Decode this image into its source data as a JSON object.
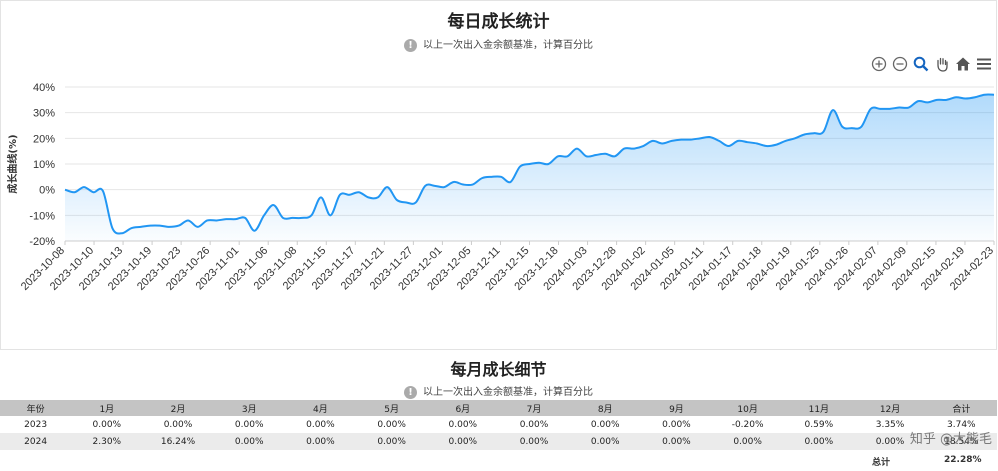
{
  "chart_title": "每日成长统计",
  "chart_subtitle": "以上一次出入金余额基准，计算百分比",
  "info_glyph": "!",
  "toolbar": [
    "zoom-in-icon",
    "zoom-out-icon",
    "zoom-select-icon",
    "pan-icon",
    "home-icon",
    "menu-icon"
  ],
  "chart_data": {
    "type": "area",
    "title": "每日成长统计",
    "subtitle": "以上一次出入金余额基准，计算百分比",
    "ylabel": "成长曲线(%)",
    "ylim": [
      -20,
      40
    ],
    "yticks": [
      -20,
      -10,
      0,
      10,
      20,
      30,
      40
    ],
    "ytick_labels": [
      "-20%",
      "-10%",
      "0%",
      "10%",
      "20%",
      "30%",
      "40%"
    ],
    "xtick_labels": [
      "2023-10-08",
      "2023-10-10",
      "2023-10-13",
      "2023-10-19",
      "2023-10-23",
      "2023-10-26",
      "2023-11-01",
      "2023-11-06",
      "2023-11-08",
      "2023-11-15",
      "2023-11-17",
      "2023-11-21",
      "2023-11-27",
      "2023-12-01",
      "2023-12-05",
      "2023-12-11",
      "2023-12-15",
      "2023-12-18",
      "2024-01-03",
      "2023-12-28",
      "2024-01-02",
      "2024-01-05",
      "2024-01-11",
      "2024-01-17",
      "2024-01-18",
      "2024-01-19",
      "2024-01-25",
      "2024-01-26",
      "2024-02-07",
      "2024-02-09",
      "2024-02-15",
      "2024-02-19",
      "2024-02-23"
    ],
    "grid": true,
    "color": "#2196f3",
    "series": [
      {
        "values": [
          0,
          -1,
          1,
          -1,
          -0.5,
          -15,
          -17,
          -15,
          -14.5,
          -14,
          -14,
          -14.5,
          -14,
          -12,
          -14.5,
          -12,
          -12,
          -11.5,
          -11.5,
          -11,
          -16,
          -10,
          -6,
          -11,
          -11,
          -11,
          -10,
          -3,
          -10,
          -2,
          -2,
          -1,
          -3,
          -3,
          1,
          -4,
          -5,
          -5,
          1.5,
          1.5,
          1,
          3,
          2,
          2,
          4.5,
          5,
          5,
          3,
          9,
          10,
          10.5,
          10,
          13,
          13,
          16,
          13,
          13.5,
          14,
          13,
          16,
          16,
          17,
          19,
          18,
          19,
          19.5,
          19.5,
          20,
          20.5,
          19,
          17,
          19,
          18.5,
          18,
          17,
          17.5,
          19,
          20,
          21.5,
          22,
          22.5,
          31,
          24.5,
          24,
          24.5,
          31.5,
          31.5,
          31.5,
          32,
          32,
          34.5,
          34,
          35,
          35,
          36,
          35.5,
          36,
          37,
          37
        ]
      }
    ]
  },
  "table_title": "每月成长细节",
  "table_subtitle": "以上一次出入金余额基准，计算百分比",
  "table": {
    "headers": [
      "年份",
      "1月",
      "2月",
      "3月",
      "4月",
      "5月",
      "6月",
      "7月",
      "8月",
      "9月",
      "10月",
      "11月",
      "12月",
      "合计"
    ],
    "rows": [
      [
        "2023",
        "0.00%",
        "0.00%",
        "0.00%",
        "0.00%",
        "0.00%",
        "0.00%",
        "0.00%",
        "0.00%",
        "0.00%",
        "-0.20%",
        "0.59%",
        "3.35%",
        "3.74%"
      ],
      [
        "2024",
        "2.30%",
        "16.24%",
        "0.00%",
        "0.00%",
        "0.00%",
        "0.00%",
        "0.00%",
        "0.00%",
        "0.00%",
        "0.00%",
        "0.00%",
        "0.00%",
        "18.54%"
      ]
    ],
    "total_label": "总计",
    "total_value": "22.28%"
  },
  "watermark": "知乎 @大熊毛"
}
